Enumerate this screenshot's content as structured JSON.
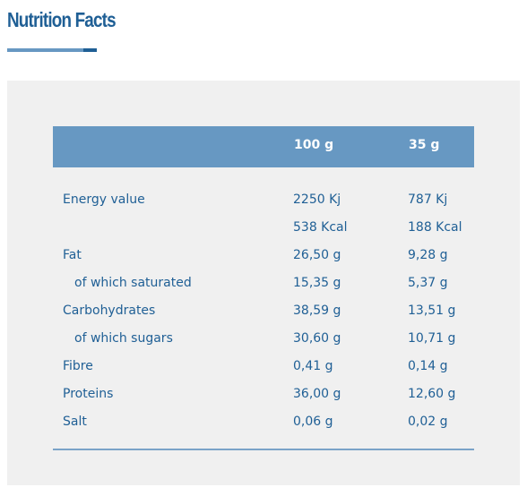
{
  "title": "Nutrition Facts",
  "colors": {
    "accent_dark": "#1f5f95",
    "accent_light": "#6798c2",
    "panel_bg": "#f0f0f0",
    "text": "#1f5f95"
  },
  "table": {
    "headers": [
      "",
      "100 g",
      "35 g"
    ],
    "rows": [
      {
        "label": "Energy value",
        "per_100g": "2250 Kj",
        "per_35g": "787 Kj"
      },
      {
        "label": "",
        "per_100g": "538 Kcal",
        "per_35g": "188 Kcal"
      },
      {
        "label": "Fat",
        "per_100g": "26,50 g",
        "per_35g": "9,28 g"
      },
      {
        "label": "of which saturated",
        "per_100g": "15,35 g",
        "per_35g": "5,37 g"
      },
      {
        "label": "Carbohydrates",
        "per_100g": "38,59 g",
        "per_35g": "13,51 g"
      },
      {
        "label": "of which sugars",
        "per_100g": "30,60 g",
        "per_35g": "10,71 g"
      },
      {
        "label": "Fibre",
        "per_100g": "0,41 g",
        "per_35g": "0,14 g"
      },
      {
        "label": "Proteins",
        "per_100g": "36,00 g",
        "per_35g": "12,60 g"
      },
      {
        "label": "Salt",
        "per_100g": "0,06 g",
        "per_35g": "0,02 g"
      }
    ]
  }
}
